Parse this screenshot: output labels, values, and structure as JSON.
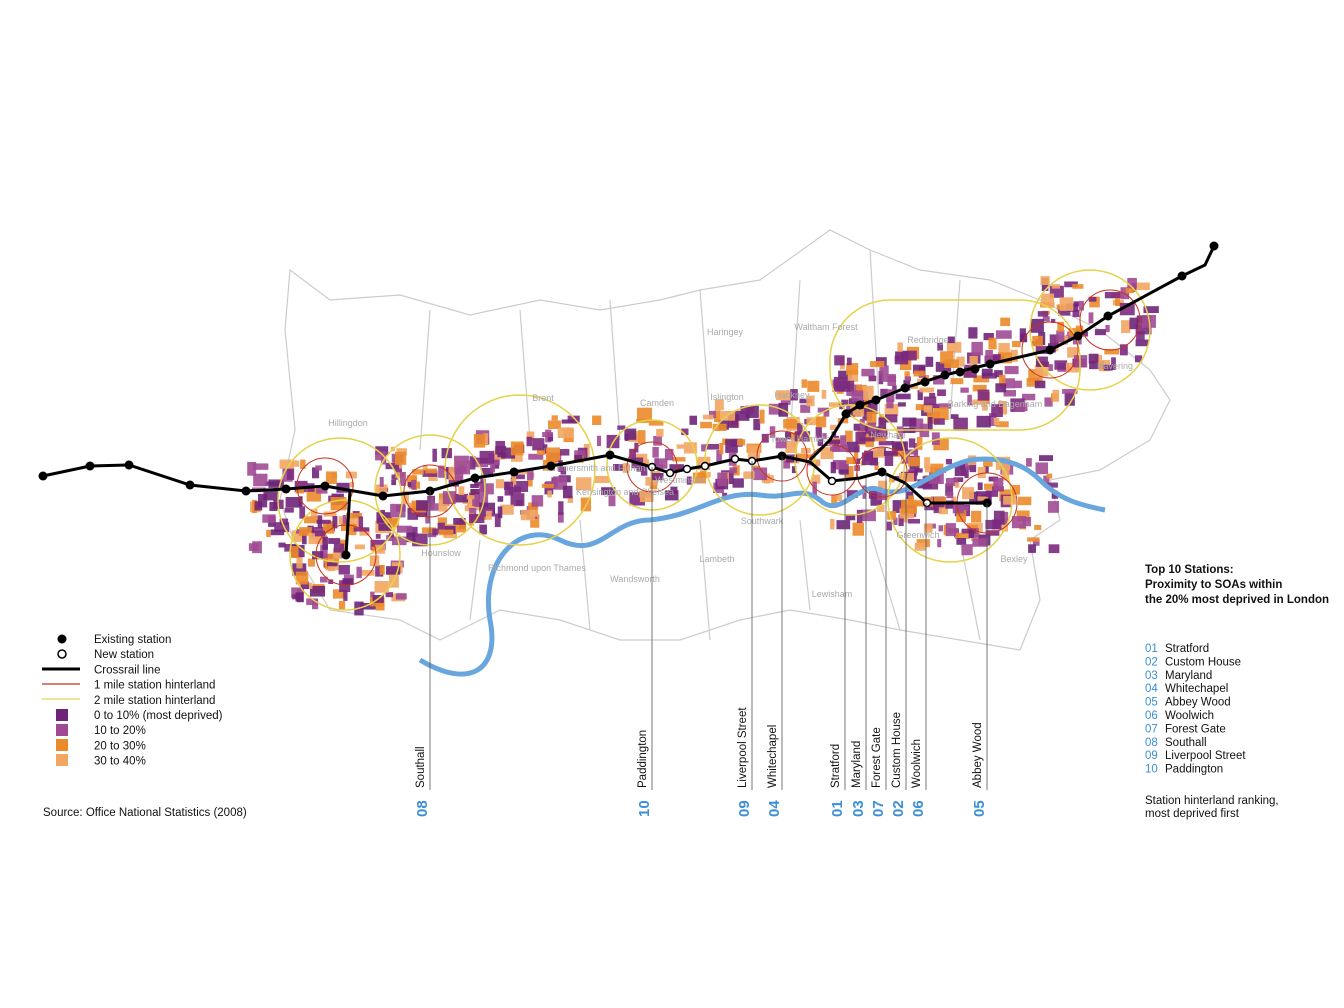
{
  "legend": {
    "items": [
      "Existing station",
      "New station",
      "Crossrail line",
      "1 mile station hinterland",
      "2 mile station hinterland",
      "0 to 10% (most deprived)",
      "10 to 20%",
      "20 to 30%",
      "30 to 40%"
    ]
  },
  "source": "Source: Office National Statistics (2008)",
  "boroughs": [
    "Haringey",
    "Waltham Forest",
    "Redbridge",
    "Havering",
    "Brent",
    "Camden",
    "Islington",
    "Hackney",
    "Tower Hamlets",
    "Newham",
    "Barking and Dagenham",
    "Hillingdon",
    "Hammersmith and Fulham",
    "Kensington and Chelsea",
    "Westminster",
    "Hounslow",
    "Richmond upon Thames",
    "Wandsworth",
    "Lambeth",
    "Southwark",
    "Greenwich",
    "Lewisham",
    "Bexley"
  ],
  "callouts": [
    {
      "rank": "08",
      "name": "Southall"
    },
    {
      "rank": "10",
      "name": "Paddington"
    },
    {
      "rank": "09",
      "name": "Liverpool Street"
    },
    {
      "rank": "04",
      "name": "Whitechapel"
    },
    {
      "rank": "01",
      "name": "Stratford"
    },
    {
      "rank": "03",
      "name": "Maryland"
    },
    {
      "rank": "07",
      "name": "Forest Gate"
    },
    {
      "rank": "02",
      "name": "Custom House"
    },
    {
      "rank": "06",
      "name": "Woolwich"
    },
    {
      "rank": "05",
      "name": "Abbey Wood"
    }
  ],
  "ranking": {
    "title": "Top 10 Stations: Proximity to SOAs within the 20% most deprived in London",
    "items": [
      {
        "rank": "01",
        "name": "Stratford"
      },
      {
        "rank": "02",
        "name": "Custom House"
      },
      {
        "rank": "03",
        "name": "Maryland"
      },
      {
        "rank": "04",
        "name": "Whitechapel"
      },
      {
        "rank": "05",
        "name": "Abbey Wood"
      },
      {
        "rank": "06",
        "name": "Woolwich"
      },
      {
        "rank": "07",
        "name": "Forest Gate"
      },
      {
        "rank": "08",
        "name": "Southall"
      },
      {
        "rank": "09",
        "name": "Liverpool Street"
      },
      {
        "rank": "10",
        "name": "Paddington"
      }
    ],
    "note": "Station hinterland ranking, most deprived first"
  }
}
